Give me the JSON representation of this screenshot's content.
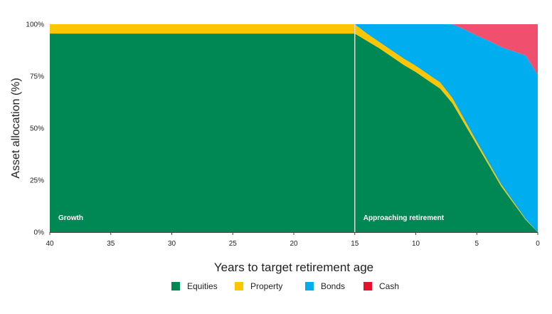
{
  "chart_data": {
    "type": "area",
    "stacked": true,
    "title": "",
    "xlabel": "Years to target retirement age",
    "ylabel": "Asset allocation (%)",
    "xlim": [
      40,
      0
    ],
    "ylim": [
      0,
      100
    ],
    "x_ticks": [
      40,
      35,
      30,
      25,
      20,
      15,
      10,
      5,
      0
    ],
    "y_ticks": [
      0,
      25,
      50,
      75,
      100
    ],
    "y_tick_labels": [
      "0%",
      "25%",
      "50%",
      "75%",
      "100%"
    ],
    "x": [
      40,
      15,
      14,
      13,
      12,
      11,
      10,
      9,
      8,
      7,
      6,
      5,
      4,
      3,
      2,
      1,
      0
    ],
    "series": [
      {
        "name": "Equities",
        "color": "#008854",
        "values": [
          95.5,
          95.5,
          92,
          88.5,
          84.5,
          80.5,
          77,
          73,
          69,
          62,
          52,
          42,
          32,
          22,
          14,
          6,
          0
        ]
      },
      {
        "name": "Property",
        "color": "#FFC600",
        "values": [
          4.5,
          4.5,
          3.5,
          3,
          3,
          3,
          3,
          3,
          3,
          2.5,
          2,
          1.5,
          1.2,
          1,
          0.7,
          0.4,
          0
        ]
      },
      {
        "name": "Bonds",
        "color": "#00AEEF",
        "values": [
          0,
          0,
          4.5,
          8.5,
          12.5,
          16.5,
          20,
          24,
          28,
          35.5,
          43.5,
          51,
          58.8,
          66,
          72.3,
          78.6,
          75.5
        ]
      },
      {
        "name": "Cash",
        "color": "#F0506E",
        "values": [
          0,
          0,
          0,
          0,
          0,
          0,
          0,
          0,
          0,
          0,
          2.5,
          5.5,
          8,
          11,
          13,
          15,
          24.5
        ]
      }
    ],
    "legend": {
      "position": "bottom",
      "items": [
        {
          "label": "Equities",
          "color": "#008854"
        },
        {
          "label": "Property",
          "color": "#FFC600"
        },
        {
          "label": "Bonds",
          "color": "#00AEEF"
        },
        {
          "label": "Cash",
          "color": "#E8112D"
        }
      ]
    },
    "phase_divider_x": 15,
    "phases": [
      {
        "label": "Growth",
        "x_start": 40
      },
      {
        "label": "Approaching retirement",
        "x_start": 15
      }
    ],
    "grid": false
  }
}
